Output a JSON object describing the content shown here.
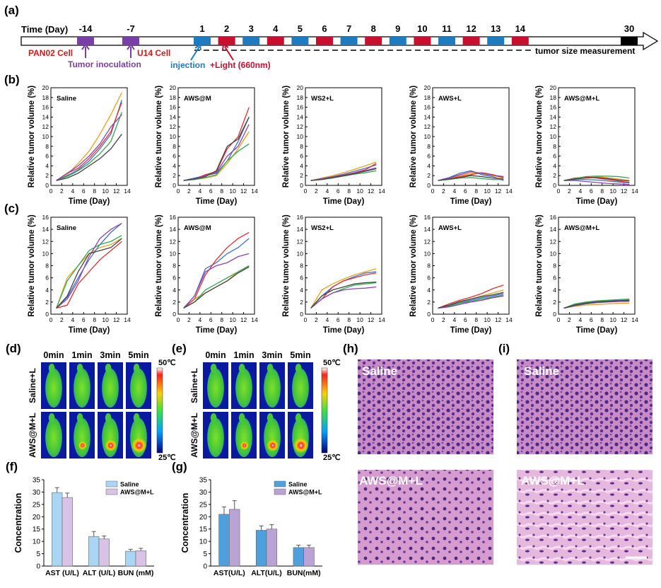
{
  "panel_labels": {
    "a": "(a)",
    "b": "(b)",
    "c": "(c)",
    "d": "(d)",
    "e": "(e)",
    "f": "(f)",
    "g": "(g)",
    "h": "(h)",
    "i": "(i)"
  },
  "timeline": {
    "axis_label": "Time (Day)",
    "pre_days": [
      "-14",
      "-7"
    ],
    "treat_days": [
      "1",
      "2",
      "3",
      "4",
      "5",
      "6",
      "7",
      "8",
      "9",
      "10",
      "11",
      "12",
      "13",
      "14"
    ],
    "end_day": "30",
    "pan02_label": "PAN02 Cell",
    "u14_label": "U14 Cell",
    "inoculation_label": "Tumor inoculation",
    "injection_label": "injection",
    "light_label": "+Light (660nm)",
    "measure_label": "tumor size measurement",
    "colors": {
      "pre": "#7a3fa6",
      "injection": "#1f7bc0",
      "light": "#c8102e",
      "end": "#000000",
      "red_text": "#d7191c",
      "purple_text": "#7a3fa6",
      "blue_text": "#1f7bc0"
    }
  },
  "growth": {
    "xlabel": "Time (Day)",
    "ylabel": "Relative tumor volume (%)",
    "line_colors": [
      "#e8a21b",
      "#3f6fd1",
      "#e0302f",
      "#34a853",
      "#8e44ad",
      "#444444",
      "#1aa7a7"
    ]
  },
  "thermal": {
    "time_labels": [
      "0min",
      "1min",
      "3min",
      "5min"
    ],
    "row_labels": [
      "Saline+L",
      "AWS@M+L"
    ],
    "scale_max": "50℃",
    "scale_min": "25℃"
  },
  "histology": {
    "h": {
      "top_label": "Saline",
      "bottom_label": "AWS@M+L"
    },
    "i": {
      "top_label": "Saline",
      "bottom_label": "AWS@M+L"
    }
  },
  "chart_data": [
    {
      "id": "b1",
      "type": "line",
      "title": "Saline",
      "xlim": [
        0,
        14
      ],
      "ylim": [
        0,
        20
      ],
      "xticks": [
        0,
        2,
        4,
        6,
        8,
        10,
        12,
        14
      ],
      "yticks": [
        0,
        2,
        4,
        6,
        8,
        10,
        12,
        14,
        16,
        18,
        20
      ],
      "x": [
        1,
        3,
        5,
        7,
        9,
        11,
        13
      ],
      "series": [
        {
          "values": [
            1,
            2.2,
            4.5,
            7,
            10.5,
            14.5,
            19
          ]
        },
        {
          "values": [
            1,
            2,
            3.2,
            5,
            7.5,
            10.5,
            17.5
          ]
        },
        {
          "values": [
            1,
            2.5,
            3.5,
            5.5,
            8,
            11,
            17
          ]
        },
        {
          "values": [
            1,
            1.8,
            3,
            4.5,
            6.5,
            9,
            15
          ]
        },
        {
          "values": [
            1,
            2.5,
            4,
            6,
            8.5,
            12,
            14.5
          ]
        },
        {
          "values": [
            1,
            1.5,
            2.5,
            4,
            5.5,
            7.5,
            10.5
          ]
        }
      ]
    },
    {
      "id": "b2",
      "type": "line",
      "title": "AWS@M",
      "xlim": [
        0,
        14
      ],
      "ylim": [
        0,
        20
      ],
      "xticks": [
        0,
        2,
        4,
        6,
        8,
        10,
        12,
        14
      ],
      "yticks": [
        0,
        2,
        4,
        6,
        8,
        10,
        12,
        14,
        16,
        18,
        20
      ],
      "x": [
        1,
        3,
        5,
        7,
        9,
        11,
        13
      ],
      "series": [
        {
          "values": [
            1,
            1.2,
            1.5,
            2,
            4.5,
            7.5,
            11
          ]
        },
        {
          "values": [
            1,
            1.5,
            2,
            2.5,
            5,
            9,
            14
          ]
        },
        {
          "values": [
            1,
            1.3,
            2.2,
            2.8,
            7.5,
            10,
            16
          ]
        },
        {
          "values": [
            1,
            1.2,
            1.6,
            2.2,
            5,
            7,
            8.5
          ]
        },
        {
          "values": [
            1,
            1.4,
            2,
            2.6,
            6,
            8,
            12.5
          ]
        },
        {
          "values": [
            1,
            1.3,
            1.8,
            3,
            8,
            9.5,
            14
          ]
        }
      ]
    },
    {
      "id": "b3",
      "type": "line",
      "title": "WS2+L",
      "xlim": [
        0,
        14
      ],
      "ylim": [
        0,
        20
      ],
      "xticks": [
        0,
        2,
        4,
        6,
        8,
        10,
        12,
        14
      ],
      "yticks": [
        0,
        2,
        4,
        6,
        8,
        10,
        12,
        14,
        16,
        18,
        20
      ],
      "x": [
        1,
        3,
        5,
        7,
        9,
        11,
        13
      ],
      "series": [
        {
          "values": [
            1,
            1.5,
            2,
            2.6,
            3.3,
            4,
            4.8
          ]
        },
        {
          "values": [
            1,
            1.4,
            1.8,
            2.3,
            2.9,
            3.5,
            4.2
          ]
        },
        {
          "values": [
            1,
            1.3,
            1.7,
            2.1,
            2.6,
            3.2,
            4.5
          ]
        },
        {
          "values": [
            1,
            1.2,
            1.5,
            1.9,
            2.3,
            2.6,
            3
          ]
        },
        {
          "values": [
            1,
            1.3,
            1.6,
            2,
            2.5,
            3,
            3.6
          ]
        },
        {
          "values": [
            1,
            1.2,
            1.6,
            2,
            2.4,
            2.9,
            3.4
          ]
        }
      ]
    },
    {
      "id": "b4",
      "type": "line",
      "title": "AWS+L",
      "xlim": [
        0,
        14
      ],
      "ylim": [
        0,
        20
      ],
      "xticks": [
        0,
        2,
        4,
        6,
        8,
        10,
        12,
        14
      ],
      "yticks": [
        0,
        2,
        4,
        6,
        8,
        10,
        12,
        14,
        16,
        18,
        20
      ],
      "x": [
        1,
        3,
        5,
        7,
        9,
        11,
        13
      ],
      "series": [
        {
          "values": [
            1,
            1.4,
            2,
            2.5,
            2.4,
            2,
            1.5
          ]
        },
        {
          "values": [
            1,
            1.6,
            2.5,
            3,
            2.2,
            1.8,
            1
          ]
        },
        {
          "values": [
            1,
            1.3,
            1.8,
            2.2,
            2.6,
            2.2,
            1.6
          ]
        },
        {
          "values": [
            1,
            1.2,
            1.5,
            1.6,
            1.4,
            1.2,
            1.2
          ]
        },
        {
          "values": [
            1,
            1.5,
            2.2,
            2.8,
            2.5,
            2.1,
            1.8
          ]
        },
        {
          "values": [
            1,
            1.3,
            1.6,
            2,
            1.8,
            1.5,
            1.3
          ]
        }
      ]
    },
    {
      "id": "b5",
      "type": "line",
      "title": "AWS@M+L",
      "xlim": [
        0,
        14
      ],
      "ylim": [
        0,
        20
      ],
      "xticks": [
        0,
        2,
        4,
        6,
        8,
        10,
        12,
        14
      ],
      "yticks": [
        0,
        2,
        4,
        6,
        8,
        10,
        12,
        14,
        16,
        18,
        20
      ],
      "x": [
        1,
        3,
        5,
        7,
        9,
        11,
        13
      ],
      "series": [
        {
          "values": [
            1,
            1.3,
            1.6,
            1.8,
            1.6,
            1.3,
            1.0
          ]
        },
        {
          "values": [
            1,
            1.2,
            1.2,
            1.1,
            0.9,
            0.7,
            0.5
          ]
        },
        {
          "values": [
            1,
            1.5,
            1.7,
            1.5,
            1.2,
            0.9,
            0.6
          ]
        },
        {
          "values": [
            1,
            1.4,
            1.8,
            1.9,
            1.9,
            1.8,
            1.5
          ]
        },
        {
          "values": [
            1,
            1.0,
            0.8,
            0.6,
            0.4,
            0.3,
            0.2
          ]
        },
        {
          "values": [
            1,
            1.3,
            1.5,
            1.6,
            1.4,
            1.1,
            0.9
          ]
        }
      ]
    },
    {
      "id": "c1",
      "type": "line",
      "title": "Saline",
      "xlim": [
        0,
        14
      ],
      "ylim": [
        0,
        16
      ],
      "xticks": [
        0,
        2,
        4,
        6,
        8,
        10,
        12,
        14
      ],
      "yticks": [
        0,
        2,
        4,
        6,
        8,
        10,
        12,
        14,
        16
      ],
      "x": [
        1,
        3,
        5,
        7,
        9,
        11,
        13
      ],
      "series": [
        {
          "values": [
            1,
            6,
            8,
            10,
            11,
            11.5,
            12.5
          ]
        },
        {
          "values": [
            1,
            2.8,
            6,
            9,
            11.5,
            13.5,
            15
          ]
        },
        {
          "values": [
            1,
            1.5,
            5,
            7,
            9,
            10.5,
            12
          ]
        },
        {
          "values": [
            1,
            5.5,
            8,
            10.5,
            11.5,
            12,
            13
          ]
        },
        {
          "values": [
            1,
            2.5,
            5.5,
            9.5,
            12.5,
            14,
            15
          ]
        },
        {
          "values": [
            1,
            3,
            7,
            10,
            10.5,
            11,
            12.5
          ]
        }
      ]
    },
    {
      "id": "c2",
      "type": "line",
      "title": "AWS@M",
      "xlim": [
        0,
        14
      ],
      "ylim": [
        0,
        16
      ],
      "xticks": [
        0,
        2,
        4,
        6,
        8,
        10,
        12,
        14
      ],
      "yticks": [
        0,
        2,
        4,
        6,
        8,
        10,
        12,
        14,
        16
      ],
      "x": [
        1,
        3,
        5,
        7,
        9,
        11,
        13
      ],
      "series": [
        {
          "values": [
            1,
            2.5,
            3.5,
            4.5,
            5.5,
            7,
            8
          ]
        },
        {
          "values": [
            1,
            3,
            7.5,
            8.5,
            10,
            11,
            12.5
          ]
        },
        {
          "values": [
            1,
            2.5,
            6.5,
            9,
            11,
            12.5,
            13.5
          ]
        },
        {
          "values": [
            1,
            2,
            4,
            5,
            6,
            7,
            8
          ]
        },
        {
          "values": [
            1,
            3,
            7,
            8,
            8.5,
            9.5,
            10
          ]
        },
        {
          "values": [
            1,
            2,
            3.5,
            4.5,
            5.5,
            6.8,
            7.8
          ]
        }
      ]
    },
    {
      "id": "c3",
      "type": "line",
      "title": "WS2+L",
      "xlim": [
        0,
        14
      ],
      "ylim": [
        0,
        16
      ],
      "xticks": [
        0,
        2,
        4,
        6,
        8,
        10,
        12,
        14
      ],
      "yticks": [
        0,
        2,
        4,
        6,
        8,
        10,
        12,
        14,
        16
      ],
      "x": [
        1,
        3,
        5,
        7,
        9,
        11,
        13
      ],
      "series": [
        {
          "values": [
            1,
            4,
            5,
            5.8,
            6.5,
            7,
            7.5
          ]
        },
        {
          "values": [
            1,
            3,
            4.5,
            5.5,
            6.2,
            6.8,
            7
          ]
        },
        {
          "values": [
            1,
            2.5,
            4.5,
            5.5,
            6,
            6.5,
            6.8
          ]
        },
        {
          "values": [
            1,
            2.5,
            3.5,
            4.2,
            4.8,
            5,
            5.2
          ]
        },
        {
          "values": [
            1,
            2.5,
            3.5,
            4,
            4.2,
            4.3,
            4.5
          ]
        },
        {
          "values": [
            1,
            3,
            4,
            4.5,
            5,
            5.2,
            5.3
          ]
        }
      ]
    },
    {
      "id": "c4",
      "type": "line",
      "title": "AWS+L",
      "xlim": [
        0,
        14
      ],
      "ylim": [
        0,
        16
      ],
      "xticks": [
        0,
        2,
        4,
        6,
        8,
        10,
        12,
        14
      ],
      "yticks": [
        0,
        2,
        4,
        6,
        8,
        10,
        12,
        14,
        16
      ],
      "x": [
        1,
        3,
        5,
        7,
        9,
        11,
        13
      ],
      "series": [
        {
          "values": [
            1,
            1.5,
            2,
            2.5,
            3,
            3.5,
            4
          ]
        },
        {
          "values": [
            1,
            1.4,
            1.9,
            2.3,
            2.7,
            3,
            3.4
          ]
        },
        {
          "values": [
            1,
            1.7,
            2.3,
            2.8,
            3.4,
            4.2,
            4.8
          ]
        },
        {
          "values": [
            1,
            1.3,
            1.8,
            2.1,
            2.5,
            2.8,
            3.2
          ]
        },
        {
          "values": [
            1,
            1.2,
            1.6,
            2,
            2.3,
            2.7,
            3
          ]
        },
        {
          "values": [
            1,
            1.5,
            2.1,
            2.5,
            2.9,
            3.2,
            3.6
          ]
        }
      ]
    },
    {
      "id": "c5",
      "type": "line",
      "title": "AWS@M+L",
      "xlim": [
        0,
        14
      ],
      "ylim": [
        0,
        16
      ],
      "xticks": [
        0,
        2,
        4,
        6,
        8,
        10,
        12,
        14
      ],
      "yticks": [
        0,
        2,
        4,
        6,
        8,
        10,
        12,
        14,
        16
      ],
      "x": [
        1,
        3,
        5,
        7,
        9,
        11,
        13
      ],
      "series": [
        {
          "values": [
            1,
            1.3,
            1.5,
            1.6,
            1.7,
            1.8,
            1.8
          ]
        },
        {
          "values": [
            1,
            1.6,
            1.9,
            2.1,
            2.2,
            2.3,
            2.3
          ]
        },
        {
          "values": [
            1,
            1.5,
            1.8,
            2,
            2.1,
            2.2,
            2.2
          ]
        },
        {
          "values": [
            1,
            1.7,
            2,
            2.2,
            2.3,
            2.4,
            2.5
          ]
        },
        {
          "values": [
            1,
            1.4,
            1.7,
            1.9,
            2,
            2.1,
            2.1
          ]
        },
        {
          "values": [
            1,
            1.5,
            1.8,
            2,
            2.1,
            2.2,
            2.3
          ]
        }
      ]
    },
    {
      "id": "f",
      "type": "bar",
      "ylabel": "Concentration",
      "ylim": [
        0,
        35
      ],
      "yticks": [
        0,
        5,
        10,
        15,
        20,
        25,
        30,
        35
      ],
      "categories": [
        "AST (U/L)",
        "ALT (U/L)",
        "BUN (mM)"
      ],
      "series": [
        {
          "name": "Saline",
          "color": "#a9d6f5",
          "values": [
            29.8,
            12,
            6
          ],
          "errors": [
            2,
            2,
            0.8
          ]
        },
        {
          "name": "AWS@M+L",
          "color": "#d8c3e6",
          "values": [
            27.8,
            11,
            6.2
          ],
          "errors": [
            1.8,
            1.2,
            1
          ]
        }
      ],
      "legend": "top-right"
    },
    {
      "id": "g",
      "type": "bar",
      "ylabel": "Concentration",
      "ylim": [
        0,
        35
      ],
      "yticks": [
        0,
        5,
        10,
        15,
        20,
        25,
        30,
        35
      ],
      "categories": [
        "AST(U/L)",
        "ALT(U/L)",
        "BUN(mM)"
      ],
      "series": [
        {
          "name": "Saline",
          "color": "#4ea0dd",
          "values": [
            21,
            14.5,
            7.5
          ],
          "errors": [
            3,
            1.8,
            1
          ]
        },
        {
          "name": "AWS@M+L",
          "color": "#b9a2d4",
          "values": [
            23,
            15,
            7.5
          ],
          "errors": [
            3.5,
            1.8,
            1
          ]
        }
      ],
      "legend": "top-right"
    }
  ]
}
